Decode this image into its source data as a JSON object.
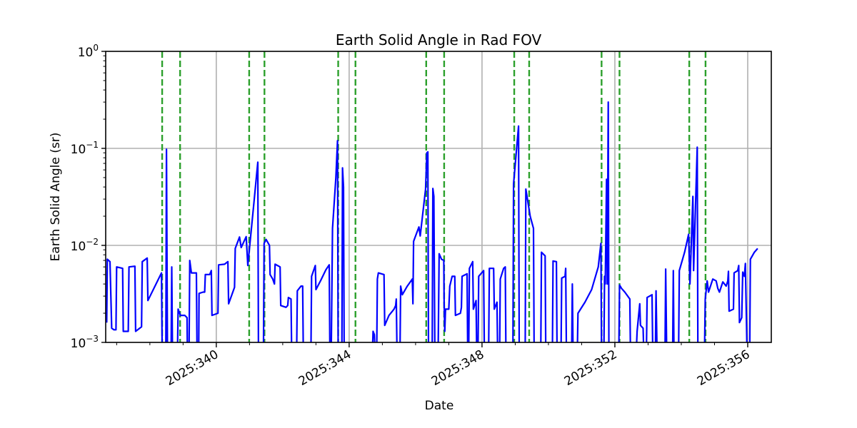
{
  "chart_data": {
    "type": "line",
    "title": "Earth Solid Angle in Rad FOV",
    "xlabel": "Date",
    "ylabel": "Earth Solid Angle (sr)",
    "yscale": "log",
    "ylim": [
      0.001,
      1
    ],
    "xlim_day": [
      336.67,
      356.71
    ],
    "grid": true,
    "legend": null,
    "y_ticks": [
      {
        "value": 1,
        "label_base": "10",
        "label_exp": "0"
      },
      {
        "value": 0.1,
        "label_base": "10",
        "label_exp": "−1"
      },
      {
        "value": 0.01,
        "label_base": "10",
        "label_exp": "−2"
      },
      {
        "value": 0.001,
        "label_base": "10",
        "label_exp": "−3"
      }
    ],
    "x_ticks": [
      {
        "day": 340,
        "label": "2025:340"
      },
      {
        "day": 344,
        "label": "2025:344"
      },
      {
        "day": 348,
        "label": "2025:348"
      },
      {
        "day": 352,
        "label": "2025:352"
      },
      {
        "day": 356,
        "label": "2025:356"
      }
    ],
    "x_minor_ticks_day": [
      337,
      338,
      339,
      341,
      342,
      343,
      345,
      346,
      347,
      349,
      350,
      351,
      353,
      354,
      355
    ],
    "vertical_markers": {
      "color": "#2ca02c",
      "style": "dashed",
      "days": [
        338.37,
        338.91,
        340.99,
        341.45,
        343.67,
        344.19,
        346.32,
        346.86,
        348.97,
        349.42,
        351.6,
        352.14,
        354.24,
        354.73
      ]
    },
    "series": [
      {
        "name": "Earth Solid Angle",
        "color": "#0000ff",
        "points": [
          [
            336.7,
            0.0016
          ],
          [
            336.72,
            0.0072
          ],
          [
            336.8,
            0.0068
          ],
          [
            336.85,
            0.0014
          ],
          [
            336.92,
            0.00135
          ],
          [
            336.98,
            0.00135
          ],
          [
            337.0,
            0.006
          ],
          [
            337.18,
            0.0058
          ],
          [
            337.2,
            0.0013
          ],
          [
            337.35,
            0.0013
          ],
          [
            337.37,
            0.006
          ],
          [
            337.55,
            0.0061
          ],
          [
            337.57,
            0.0013
          ],
          [
            337.75,
            0.00145
          ],
          [
            337.77,
            0.0068
          ],
          [
            337.92,
            0.0074
          ],
          [
            337.94,
            0.0027
          ],
          [
            338.35,
            0.0052
          ],
          [
            338.37,
            0.0008
          ],
          [
            338.48,
            0.0008
          ],
          [
            338.5,
            0.098
          ],
          [
            338.53,
            0.0008
          ],
          [
            338.64,
            0.0008
          ],
          [
            338.66,
            0.006
          ],
          [
            338.68,
            0.0008
          ],
          [
            338.83,
            0.0008
          ],
          [
            338.85,
            0.0022
          ],
          [
            338.92,
            0.0019
          ],
          [
            339.05,
            0.0019
          ],
          [
            339.12,
            0.0018
          ],
          [
            339.13,
            0.0008
          ],
          [
            339.18,
            0.0008
          ],
          [
            339.2,
            0.007
          ],
          [
            339.25,
            0.0052
          ],
          [
            339.4,
            0.0052
          ],
          [
            339.42,
            0.0008
          ],
          [
            339.47,
            0.0008
          ],
          [
            339.48,
            0.0032
          ],
          [
            339.6,
            0.0033
          ],
          [
            339.65,
            0.0033
          ],
          [
            339.67,
            0.005
          ],
          [
            339.8,
            0.005
          ],
          [
            339.85,
            0.0055
          ],
          [
            339.87,
            0.0019
          ],
          [
            340.05,
            0.002
          ],
          [
            340.07,
            0.0063
          ],
          [
            340.25,
            0.0064
          ],
          [
            340.35,
            0.0068
          ],
          [
            340.37,
            0.0025
          ],
          [
            340.55,
            0.0037
          ],
          [
            340.57,
            0.0093
          ],
          [
            340.7,
            0.0122
          ],
          [
            340.75,
            0.0095
          ],
          [
            340.9,
            0.0123
          ],
          [
            340.95,
            0.0062
          ],
          [
            341.12,
            0.025
          ],
          [
            341.25,
            0.072
          ],
          [
            341.27,
            0.0008
          ],
          [
            341.42,
            0.0008
          ],
          [
            341.44,
            0.0105
          ],
          [
            341.5,
            0.0115
          ],
          [
            341.6,
            0.01
          ],
          [
            341.62,
            0.005
          ],
          [
            341.7,
            0.0045
          ],
          [
            341.75,
            0.004
          ],
          [
            341.77,
            0.0064
          ],
          [
            341.92,
            0.006
          ],
          [
            341.94,
            0.0024
          ],
          [
            342.1,
            0.0023
          ],
          [
            342.15,
            0.0024
          ],
          [
            342.17,
            0.0029
          ],
          [
            342.25,
            0.0028
          ],
          [
            342.27,
            0.0008
          ],
          [
            342.42,
            0.0008
          ],
          [
            342.44,
            0.0034
          ],
          [
            342.55,
            0.0038
          ],
          [
            342.6,
            0.0038
          ],
          [
            342.62,
            0.0008
          ],
          [
            342.85,
            0.0008
          ],
          [
            342.87,
            0.0048
          ],
          [
            342.98,
            0.0062
          ],
          [
            343.0,
            0.0035
          ],
          [
            343.15,
            0.0044
          ],
          [
            343.3,
            0.0056
          ],
          [
            343.4,
            0.0063
          ],
          [
            343.42,
            0.0008
          ],
          [
            343.46,
            0.0008
          ],
          [
            343.5,
            0.015
          ],
          [
            343.6,
            0.05
          ],
          [
            343.65,
            0.12
          ],
          [
            343.67,
            0.0008
          ],
          [
            343.78,
            0.0008
          ],
          [
            343.8,
            0.063
          ],
          [
            343.83,
            0.04
          ],
          [
            343.85,
            0.0008
          ],
          [
            344.7,
            0.0008
          ],
          [
            344.72,
            0.0013
          ],
          [
            344.76,
            0.0012
          ],
          [
            344.78,
            0.0008
          ],
          [
            344.83,
            0.0008
          ],
          [
            344.85,
            0.0045
          ],
          [
            344.88,
            0.0052
          ],
          [
            345.05,
            0.005
          ],
          [
            345.07,
            0.0015
          ],
          [
            345.2,
            0.0019
          ],
          [
            345.35,
            0.0022
          ],
          [
            345.4,
            0.0024
          ],
          [
            345.42,
            0.0028
          ],
          [
            345.44,
            0.0008
          ],
          [
            345.53,
            0.0008
          ],
          [
            345.55,
            0.0038
          ],
          [
            345.6,
            0.0031
          ],
          [
            345.75,
            0.0038
          ],
          [
            345.9,
            0.0045
          ],
          [
            345.92,
            0.0025
          ],
          [
            345.94,
            0.011
          ],
          [
            346.1,
            0.0155
          ],
          [
            346.14,
            0.0125
          ],
          [
            346.3,
            0.038
          ],
          [
            346.34,
            0.09
          ],
          [
            346.37,
            0.092
          ],
          [
            346.39,
            0.0008
          ],
          [
            346.5,
            0.0008
          ],
          [
            346.52,
            0.0386
          ],
          [
            346.55,
            0.032
          ],
          [
            346.58,
            0.0008
          ],
          [
            346.68,
            0.0008
          ],
          [
            346.71,
            0.0082
          ],
          [
            346.78,
            0.0072
          ],
          [
            346.85,
            0.007
          ],
          [
            346.86,
            0.0025
          ],
          [
            346.88,
            0.0013
          ],
          [
            346.9,
            0.0022
          ],
          [
            347.0,
            0.0022
          ],
          [
            347.03,
            0.0038
          ],
          [
            347.1,
            0.0048
          ],
          [
            347.18,
            0.0048
          ],
          [
            347.2,
            0.0019
          ],
          [
            347.35,
            0.002
          ],
          [
            347.38,
            0.0023
          ],
          [
            347.4,
            0.0048
          ],
          [
            347.55,
            0.0051
          ],
          [
            347.57,
            0.0008
          ],
          [
            347.6,
            0.0008
          ],
          [
            347.62,
            0.0058
          ],
          [
            347.72,
            0.0068
          ],
          [
            347.74,
            0.0022
          ],
          [
            347.82,
            0.0027
          ],
          [
            347.84,
            0.0008
          ],
          [
            347.88,
            0.0008
          ],
          [
            347.9,
            0.0048
          ],
          [
            348.05,
            0.0055
          ],
          [
            348.07,
            0.0008
          ],
          [
            348.2,
            0.0008
          ],
          [
            348.22,
            0.0058
          ],
          [
            348.35,
            0.0058
          ],
          [
            348.37,
            0.0022
          ],
          [
            348.45,
            0.0026
          ],
          [
            348.47,
            0.0008
          ],
          [
            348.53,
            0.0008
          ],
          [
            348.55,
            0.0045
          ],
          [
            348.65,
            0.0058
          ],
          [
            348.7,
            0.006
          ],
          [
            348.72,
            0.0008
          ],
          [
            348.93,
            0.0008
          ],
          [
            348.95,
            0.043
          ],
          [
            349.1,
            0.17
          ],
          [
            349.12,
            0.0008
          ],
          [
            349.3,
            0.0008
          ],
          [
            349.32,
            0.038
          ],
          [
            349.45,
            0.02
          ],
          [
            349.55,
            0.015
          ],
          [
            349.57,
            0.0008
          ],
          [
            349.77,
            0.0008
          ],
          [
            349.79,
            0.0085
          ],
          [
            349.9,
            0.0078
          ],
          [
            349.92,
            0.0008
          ],
          [
            350.12,
            0.0008
          ],
          [
            350.14,
            0.0069
          ],
          [
            350.24,
            0.0068
          ],
          [
            350.26,
            0.0008
          ],
          [
            350.38,
            0.0008
          ],
          [
            350.4,
            0.0046
          ],
          [
            350.5,
            0.0048
          ],
          [
            350.52,
            0.0058
          ],
          [
            350.54,
            0.0008
          ],
          [
            350.7,
            0.0008
          ],
          [
            350.72,
            0.004
          ],
          [
            350.74,
            0.0008
          ],
          [
            350.87,
            0.0008
          ],
          [
            350.89,
            0.002
          ],
          [
            351.1,
            0.0026
          ],
          [
            351.3,
            0.0035
          ],
          [
            351.5,
            0.006
          ],
          [
            351.58,
            0.0105
          ],
          [
            351.6,
            0.0008
          ],
          [
            351.67,
            0.0008
          ],
          [
            351.69,
            0.0048
          ],
          [
            351.71,
            0.004
          ],
          [
            351.75,
            0.048
          ],
          [
            351.77,
            0.004
          ],
          [
            351.8,
            0.3
          ],
          [
            351.82,
            0.0008
          ],
          [
            352.12,
            0.0008
          ],
          [
            352.14,
            0.0039
          ],
          [
            352.2,
            0.0036
          ],
          [
            352.3,
            0.0033
          ],
          [
            352.45,
            0.0028
          ],
          [
            352.47,
            0.0008
          ],
          [
            352.6,
            0.0008
          ],
          [
            352.65,
            0.0009
          ],
          [
            352.67,
            0.0013
          ],
          [
            352.75,
            0.0025
          ],
          [
            352.77,
            0.0015
          ],
          [
            352.85,
            0.0014
          ],
          [
            352.87,
            0.0008
          ],
          [
            352.95,
            0.0008
          ],
          [
            352.97,
            0.0029
          ],
          [
            353.12,
            0.0031
          ],
          [
            353.14,
            0.0008
          ],
          [
            353.22,
            0.0008
          ],
          [
            353.24,
            0.0034
          ],
          [
            353.27,
            0.0008
          ],
          [
            353.51,
            0.0008
          ],
          [
            353.53,
            0.0057
          ],
          [
            353.56,
            0.0008
          ],
          [
            353.74,
            0.0008
          ],
          [
            353.76,
            0.0055
          ],
          [
            353.78,
            0.0008
          ],
          [
            353.92,
            0.0008
          ],
          [
            353.94,
            0.0055
          ],
          [
            354.1,
            0.0085
          ],
          [
            354.22,
            0.013
          ],
          [
            354.26,
            0.004
          ],
          [
            354.35,
            0.032
          ],
          [
            354.37,
            0.0055
          ],
          [
            354.48,
            0.103
          ],
          [
            354.5,
            0.0008
          ],
          [
            354.7,
            0.0008
          ],
          [
            354.72,
            0.0028
          ],
          [
            354.78,
            0.0043
          ],
          [
            354.82,
            0.0033
          ],
          [
            354.95,
            0.0045
          ],
          [
            355.05,
            0.0043
          ],
          [
            355.1,
            0.0036
          ],
          [
            355.15,
            0.0033
          ],
          [
            355.25,
            0.0042
          ],
          [
            355.35,
            0.0038
          ],
          [
            355.4,
            0.0043
          ],
          [
            355.42,
            0.0054
          ],
          [
            355.44,
            0.0021
          ],
          [
            355.57,
            0.0022
          ],
          [
            355.59,
            0.0052
          ],
          [
            355.7,
            0.0055
          ],
          [
            355.73,
            0.0062
          ],
          [
            355.75,
            0.0016
          ],
          [
            355.82,
            0.0018
          ],
          [
            355.85,
            0.0053
          ],
          [
            355.9,
            0.0048
          ],
          [
            355.93,
            0.0065
          ],
          [
            355.98,
            0.0008
          ],
          [
            356.06,
            0.0008
          ],
          [
            356.08,
            0.0072
          ],
          [
            356.2,
            0.0085
          ],
          [
            356.3,
            0.0093
          ]
        ]
      }
    ]
  }
}
